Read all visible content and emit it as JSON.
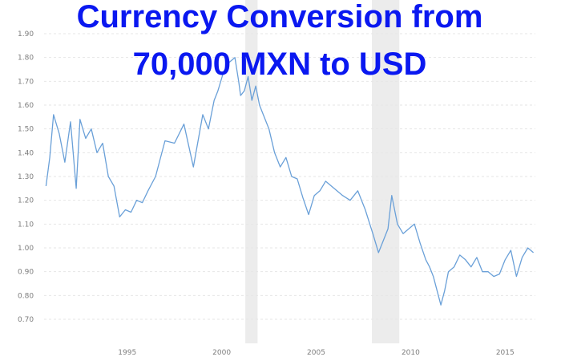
{
  "chart_data": {
    "type": "line",
    "title": [
      "Currency Conversion from",
      "70,000 MXN to USD"
    ],
    "xlabel": "",
    "ylabel": "",
    "xlim": [
      1990.6,
      2016.6
    ],
    "ylim": [
      0.66,
      1.92
    ],
    "x_ticks": [
      1995,
      2000,
      2005,
      2010,
      2015
    ],
    "x_tick_labels": [
      "1995",
      "2000",
      "2005",
      "2010",
      "2015"
    ],
    "y_ticks": [
      0.7,
      0.8,
      0.9,
      1.0,
      1.1,
      1.2,
      1.3,
      1.4,
      1.5,
      1.6,
      1.7,
      1.8,
      1.9
    ],
    "y_tick_labels": [
      "0.70",
      "0.80",
      "0.90",
      "1.00",
      "1.10",
      "1.20",
      "1.30",
      "1.40",
      "1.50",
      "1.60",
      "1.70",
      "1.80",
      "1.90"
    ],
    "grid": true,
    "shaded_periods": [
      [
        2001.25,
        2001.9
      ],
      [
        2007.95,
        2009.4
      ]
    ],
    "shaded_color": "#ececec",
    "line_color": "#6aa0d8",
    "title_color": "#0a18f0",
    "series": [
      {
        "x": [
          1990.7,
          1990.9,
          1991.1,
          1991.4,
          1991.7,
          1992.0,
          1992.3,
          1992.5,
          1992.8,
          1993.1,
          1993.4,
          1993.7,
          1994.0,
          1994.3,
          1994.6,
          1994.9,
          1995.2,
          1995.5,
          1995.8,
          1996.1,
          1996.5,
          1997.0,
          1997.5,
          1998.0,
          1998.5,
          1999.0,
          1999.3,
          1999.6,
          1999.8,
          2000.1,
          2000.4,
          2000.7,
          2000.9,
          2001.0,
          2001.2,
          2001.4,
          2001.6,
          2001.8,
          2002.0,
          2002.2,
          2002.5,
          2002.8,
          2003.1,
          2003.4,
          2003.7,
          2004.0,
          2004.3,
          2004.6,
          2004.9,
          2005.2,
          2005.5,
          2005.8,
          2006.1,
          2006.4,
          2006.8,
          2007.2,
          2007.6,
          2008.0,
          2008.3,
          2008.5,
          2008.8,
          2009.0,
          2009.3,
          2009.6,
          2009.9,
          2010.2,
          2010.5,
          2010.8,
          2011.0,
          2011.2,
          2011.4,
          2011.6,
          2011.8,
          2012.0,
          2012.3,
          2012.6,
          2012.9,
          2013.2,
          2013.5,
          2013.8,
          2014.1,
          2014.4,
          2014.7,
          2015.0,
          2015.3,
          2015.6,
          2015.9,
          2016.2,
          2016.5
        ],
        "y": [
          1.26,
          1.38,
          1.56,
          1.48,
          1.36,
          1.53,
          1.25,
          1.54,
          1.46,
          1.5,
          1.4,
          1.44,
          1.3,
          1.26,
          1.13,
          1.16,
          1.15,
          1.2,
          1.19,
          1.24,
          1.3,
          1.45,
          1.44,
          1.52,
          1.34,
          1.56,
          1.5,
          1.62,
          1.66,
          1.74,
          1.78,
          1.8,
          1.7,
          1.64,
          1.66,
          1.72,
          1.62,
          1.68,
          1.6,
          1.56,
          1.5,
          1.4,
          1.34,
          1.38,
          1.3,
          1.29,
          1.21,
          1.14,
          1.22,
          1.24,
          1.28,
          1.26,
          1.24,
          1.22,
          1.2,
          1.24,
          1.16,
          1.06,
          0.98,
          1.02,
          1.08,
          1.22,
          1.1,
          1.06,
          1.08,
          1.1,
          1.02,
          0.95,
          0.92,
          0.88,
          0.82,
          0.76,
          0.82,
          0.9,
          0.92,
          0.97,
          0.95,
          0.92,
          0.96,
          0.9,
          0.9,
          0.88,
          0.89,
          0.95,
          0.99,
          0.88,
          0.96,
          1.0,
          0.98
        ]
      }
    ]
  }
}
